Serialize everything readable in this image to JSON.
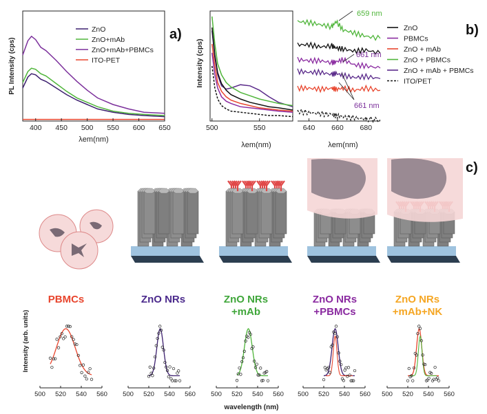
{
  "panel_labels": {
    "a": "a)",
    "b": "b)",
    "c": "c)"
  },
  "colors": {
    "zno": "#3c1f6e",
    "zno_mab": "#4fb53a",
    "zno_mab_pbmcs": "#7b2f9b",
    "ito": "#e8452d",
    "b_zno": "#111111",
    "b_pbmcs": "#8a2aa0",
    "b_zno_mab": "#e8452d",
    "b_zno_pbmcs": "#4fb53a",
    "b_zno_mab_pbmcs": "#5a2a8a",
    "b_ito": "#111111",
    "label_pbmcs": "#e8452d",
    "label_zno": "#4b2a8c",
    "label_zno_mab": "#3fa63a",
    "label_zno_pbmcs": "#8a2aa0",
    "label_nk": "#f5a623"
  },
  "chart_data": [
    {
      "id": "a",
      "type": "line",
      "xlabel": "λem(nm)",
      "ylabel": "PL Intensity (cps)",
      "xlim": [
        375,
        650
      ],
      "xticks": [
        "400",
        "450",
        "500",
        "550",
        "600",
        "650"
      ],
      "xtick_values": [
        400,
        450,
        500,
        550,
        600,
        650
      ],
      "ylim": [
        0,
        100
      ],
      "x": [
        375,
        385,
        392,
        400,
        410,
        420,
        440,
        460,
        480,
        500,
        520,
        550,
        580,
        610,
        650
      ],
      "series": [
        {
          "name": "ZnO",
          "color_key": "zno",
          "values": [
            30,
            40,
            43,
            42,
            38,
            36,
            30,
            24,
            19,
            15,
            11,
            8,
            6,
            5,
            4
          ]
        },
        {
          "name": "ZnO+mAb",
          "color_key": "zno_mab",
          "values": [
            35,
            45,
            48,
            47,
            43,
            41,
            34,
            27,
            21,
            17,
            13,
            9,
            7,
            6,
            5
          ]
        },
        {
          "name": "ZnO+mAb+PBMCs",
          "color_key": "zno_mab_pbmcs",
          "values": [
            60,
            73,
            77,
            74,
            67,
            64,
            55,
            45,
            36,
            28,
            21,
            15,
            11,
            8,
            7
          ]
        },
        {
          "name": "ITO-PET",
          "color_key": "ito",
          "values": [
            1.5,
            1.5,
            1.5,
            1.5,
            1.5,
            1.5,
            1.5,
            1.5,
            1.5,
            1.5,
            1.5,
            1.5,
            1.5,
            1.5,
            1.5
          ]
        }
      ],
      "legend": [
        "ZnO",
        "ZnO+mAb",
        "ZnO+mAb+PBMCs",
        "ITO-PET"
      ]
    },
    {
      "id": "b_left",
      "type": "line",
      "xlabel": "λem(nm)",
      "ylabel": "Intensity (cps)",
      "xlim": [
        498,
        585
      ],
      "xticks": [
        "500",
        "550"
      ],
      "xtick_values": [
        500,
        550
      ],
      "ylim": [
        0,
        100
      ],
      "x": [
        500,
        503,
        506,
        510,
        515,
        520,
        530,
        540,
        550,
        560,
        570,
        585
      ],
      "series": [
        {
          "name": "ZnO + mAb + PBMCs",
          "color_key": "b_zno_mab_pbmcs",
          "values": [
            82,
            58,
            42,
            32,
            29,
            30,
            33,
            32,
            28,
            22,
            17,
            13
          ]
        },
        {
          "name": "ZnO + PBMCs",
          "color_key": "b_zno_pbmcs",
          "values": [
            95,
            70,
            52,
            42,
            35,
            31,
            26,
            23,
            20,
            18,
            16,
            14
          ]
        },
        {
          "name": "ZnO",
          "color_key": "b_zno",
          "values": [
            85,
            60,
            44,
            34,
            28,
            24,
            20,
            17,
            15,
            13,
            12,
            10
          ]
        },
        {
          "name": "ZnO + mAb",
          "color_key": "b_zno_mab",
          "values": [
            70,
            50,
            35,
            27,
            22,
            19,
            16,
            14,
            12,
            11,
            10,
            9
          ]
        },
        {
          "name": "PBMCs",
          "color_key": "b_pbmcs",
          "values": [
            62,
            42,
            30,
            22,
            18,
            16,
            13,
            12,
            11,
            10,
            9,
            8
          ]
        },
        {
          "name": "ITO/PET",
          "color_key": "b_ito",
          "values": [
            50,
            30,
            20,
            14,
            11,
            9,
            8,
            7,
            6,
            5,
            5,
            4
          ]
        }
      ]
    },
    {
      "id": "b_right",
      "type": "line",
      "xlabel": "λem(nm)",
      "xlim": [
        632,
        690
      ],
      "xticks": [
        "640",
        "660",
        "680"
      ],
      "xtick_values": [
        640,
        660,
        680
      ],
      "ylim": [
        0,
        100
      ],
      "annotations": [
        "659 nm",
        "661 nm",
        "661 nm"
      ],
      "x": [
        632,
        640,
        648,
        656,
        659,
        664,
        672,
        680,
        690
      ],
      "series": [
        {
          "name": "ZnO + PBMCs",
          "color_key": "b_zno_pbmcs",
          "values": [
            94,
            93,
            91,
            89,
            94,
            86,
            83,
            80,
            78
          ]
        },
        {
          "name": "ZnO",
          "color_key": "b_zno",
          "values": [
            72,
            72,
            70,
            71,
            69,
            68,
            66,
            67,
            64
          ]
        },
        {
          "name": "ZnO + mAb + PBMCs",
          "color_key": "b_pbmcs",
          "values": [
            58,
            57,
            57,
            55,
            56,
            58,
            53,
            52,
            50
          ]
        },
        {
          "name": "PBMCs",
          "color_key": "b_zno_mab_pbmcs",
          "values": [
            47,
            46,
            46,
            44,
            45,
            43,
            41,
            42,
            40
          ]
        },
        {
          "name": "ZnO + mAb",
          "color_key": "b_zno_mab",
          "values": [
            31,
            31,
            30,
            31,
            30,
            31,
            29,
            31,
            29
          ]
        },
        {
          "name": "ITO/PET",
          "color_key": "b_ito",
          "values": [
            9,
            8,
            7,
            6,
            5,
            4,
            3,
            2,
            1
          ]
        }
      ],
      "legend": [
        "ZnO",
        "PBMCs",
        "ZnO + mAb",
        "ZnO + PBMCs",
        "ZnO + mAb + PBMCs",
        "ITO/PET"
      ]
    },
    {
      "id": "c",
      "type": "scatter",
      "ylabel": "Intensity  (arb. units)",
      "xlabel": "wavelength (nm)",
      "xlim": [
        500,
        560
      ],
      "xticks": [
        "500",
        "520",
        "540",
        "560"
      ],
      "xtick_values": [
        500,
        520,
        540,
        560
      ],
      "panels": [
        {
          "name": "PBMCs",
          "line_color_key": "ito",
          "center": 525,
          "width": 9,
          "extra_center": null
        },
        {
          "name": "ZnO NRs",
          "line_color_key": "zno",
          "center": 531,
          "width": 3.2,
          "extra_center": null
        },
        {
          "name": "ZnO NRs +mAb",
          "line_color_key": "zno_mab",
          "center": 531,
          "width": 3.8,
          "extra_center": null
        },
        {
          "name": "ZnO NRs +PBMCs",
          "line_color_key": "zno",
          "center": 531,
          "width": 3.0,
          "extra_center": 531
        },
        {
          "name": "ZnO NRs +mAb+NK",
          "line_color_key": "ito",
          "center": 531,
          "width": 2.5,
          "extra_center": 532
        }
      ]
    }
  ],
  "c_labels": [
    {
      "line1": "PBMCs",
      "line2": "",
      "color_key": "label_pbmcs"
    },
    {
      "line1": "ZnO NRs",
      "line2": "",
      "color_key": "label_zno"
    },
    {
      "line1": "ZnO NRs",
      "line2": "+mAb",
      "color_key": "label_zno_mab"
    },
    {
      "line1": "ZnO NRs",
      "line2": "+PBMCs",
      "color_key": "label_zno_pbmcs"
    },
    {
      "line1": "ZnO NRs",
      "line2": "+mAb+NK",
      "color_key": "label_nk"
    }
  ]
}
